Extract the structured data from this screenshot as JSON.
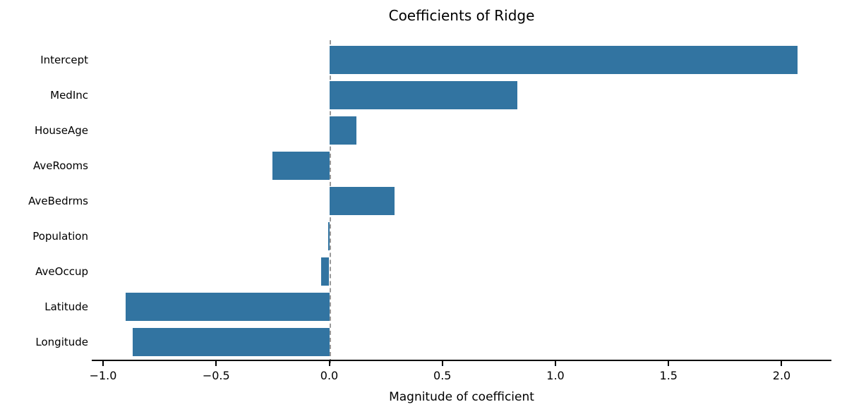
{
  "chart_data": {
    "type": "bar",
    "orientation": "horizontal",
    "title": "Coefficients of Ridge",
    "xlabel": "Magnitude of coefficient",
    "ylabel": "",
    "categories": [
      "Intercept",
      "MedInc",
      "HouseAge",
      "AveRooms",
      "AveBedrms",
      "Population",
      "AveOccup",
      "Latitude",
      "Longitude"
    ],
    "values": [
      2.07,
      0.83,
      0.12,
      -0.25,
      0.29,
      -0.005,
      -0.035,
      -0.9,
      -0.87
    ],
    "xlim": [
      -1.05,
      2.22
    ],
    "xticks": [
      -1.0,
      -0.5,
      0.0,
      0.5,
      1.0,
      1.5,
      2.0
    ],
    "xtick_labels": [
      "−1.0",
      "−0.5",
      "0.0",
      "0.5",
      "1.0",
      "1.5",
      "2.0"
    ],
    "grid": false,
    "legend": false,
    "bar_color": "#3274A1",
    "zero_line_color": "#999999",
    "spine_color": "#000000",
    "spines": "bottom-only"
  }
}
